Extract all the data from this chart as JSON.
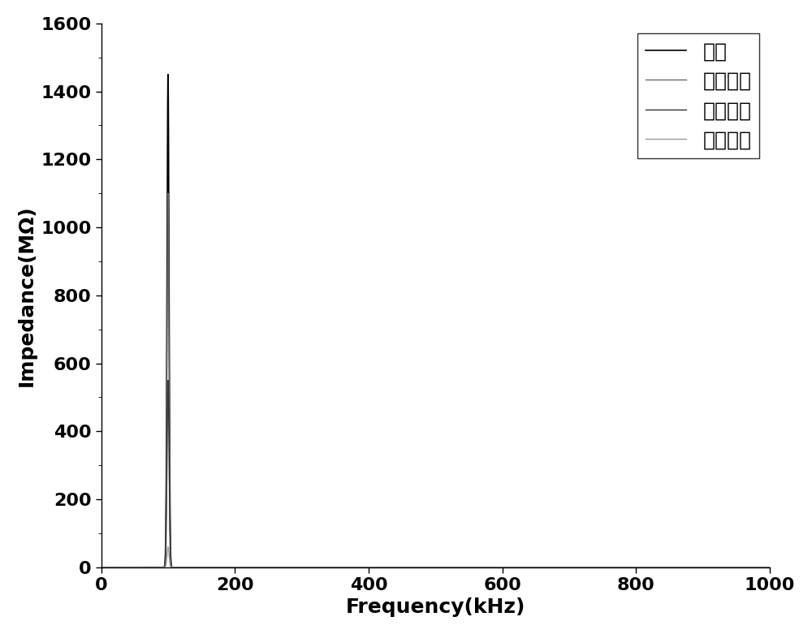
{
  "title": "",
  "xlabel": "Frequency(kHz)",
  "ylabel": "Impedance(MΩ)",
  "xlim": [
    0,
    1000
  ],
  "ylim": [
    0,
    1600
  ],
  "xticks": [
    0,
    200,
    400,
    600,
    800,
    1000
  ],
  "yticks": [
    0,
    200,
    400,
    600,
    800,
    1000,
    1200,
    1400,
    1600
  ],
  "peak_freq": 100,
  "lines": [
    {
      "label": "正常",
      "peak": 1450,
      "color": "#000000",
      "linewidth": 1.2
    },
    {
      "label": "上端短路",
      "peak": 1100,
      "color": "#666666",
      "linewidth": 1.0
    },
    {
      "label": "中端短路",
      "peak": 550,
      "color": "#333333",
      "linewidth": 1.0
    },
    {
      "label": "下端短路",
      "peak": 60,
      "color": "#999999",
      "linewidth": 1.0
    }
  ],
  "legend_loc": "upper right",
  "legend_fontsize": 18,
  "axis_fontsize": 18,
  "tick_fontsize": 16,
  "background_color": "#ffffff"
}
